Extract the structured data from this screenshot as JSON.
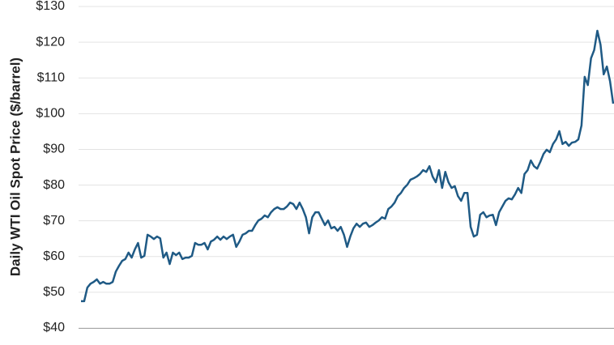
{
  "chart_data": {
    "type": "line",
    "y_label": "Daily WTI Oil Spot Price ($/barrel)",
    "ylim": [
      40,
      130
    ],
    "yticks": [
      {
        "value": 40,
        "label": "$40"
      },
      {
        "value": 50,
        "label": "$50"
      },
      {
        "value": 60,
        "label": "$60"
      },
      {
        "value": 70,
        "label": "$70"
      },
      {
        "value": 80,
        "label": "$80"
      },
      {
        "value": 90,
        "label": "$90"
      },
      {
        "value": 100,
        "label": "$100"
      },
      {
        "value": 110,
        "label": "$110"
      },
      {
        "value": 120,
        "label": "$120"
      },
      {
        "value": 130,
        "label": "$130"
      }
    ],
    "grid": true,
    "color": "#1f5a85",
    "values": [
      47.5,
      47.5,
      51.3,
      52.4,
      52.9,
      53.6,
      52.4,
      52.9,
      52.4,
      52.4,
      52.9,
      55.8,
      57.4,
      58.8,
      59.3,
      61.1,
      59.7,
      62.0,
      63.8,
      59.7,
      60.2,
      66.1,
      65.6,
      64.9,
      65.6,
      65.1,
      59.7,
      61.1,
      57.9,
      61.1,
      60.4,
      61.1,
      59.3,
      59.7,
      59.7,
      60.2,
      63.8,
      63.3,
      63.3,
      63.8,
      62.0,
      64.2,
      64.7,
      65.6,
      64.7,
      65.6,
      64.9,
      65.6,
      66.1,
      62.7,
      64.2,
      66.1,
      66.5,
      67.2,
      67.2,
      68.8,
      70.1,
      70.6,
      71.5,
      71.0,
      72.4,
      73.3,
      73.8,
      73.3,
      73.3,
      74.0,
      75.1,
      74.7,
      73.3,
      75.1,
      73.3,
      71.0,
      66.5,
      71.0,
      72.4,
      72.4,
      70.6,
      68.8,
      70.1,
      67.9,
      68.3,
      67.2,
      68.3,
      66.1,
      62.7,
      65.6,
      67.9,
      69.2,
      68.3,
      69.2,
      69.5,
      68.3,
      68.8,
      69.5,
      70.1,
      71.0,
      70.6,
      73.3,
      74.0,
      75.1,
      76.9,
      77.8,
      79.2,
      80.1,
      81.5,
      81.9,
      82.4,
      83.1,
      84.2,
      83.7,
      85.3,
      82.4,
      80.8,
      84.2,
      79.2,
      83.7,
      80.8,
      79.2,
      79.7,
      76.9,
      75.6,
      77.8,
      77.8,
      68.3,
      65.6,
      66.1,
      71.7,
      72.4,
      71.0,
      71.5,
      71.7,
      68.8,
      72.4,
      74.0,
      75.6,
      76.3,
      76.0,
      77.4,
      79.2,
      77.8,
      83.1,
      84.2,
      86.9,
      85.3,
      84.6,
      86.5,
      88.7,
      89.9,
      89.2,
      91.5,
      92.8,
      95.1,
      91.5,
      92.1,
      91.0,
      91.9,
      92.1,
      92.8,
      96.7,
      110.3,
      108.0,
      115.5,
      117.8,
      123.2,
      119.3,
      111.0,
      113.2,
      109.1,
      102.8
    ]
  }
}
